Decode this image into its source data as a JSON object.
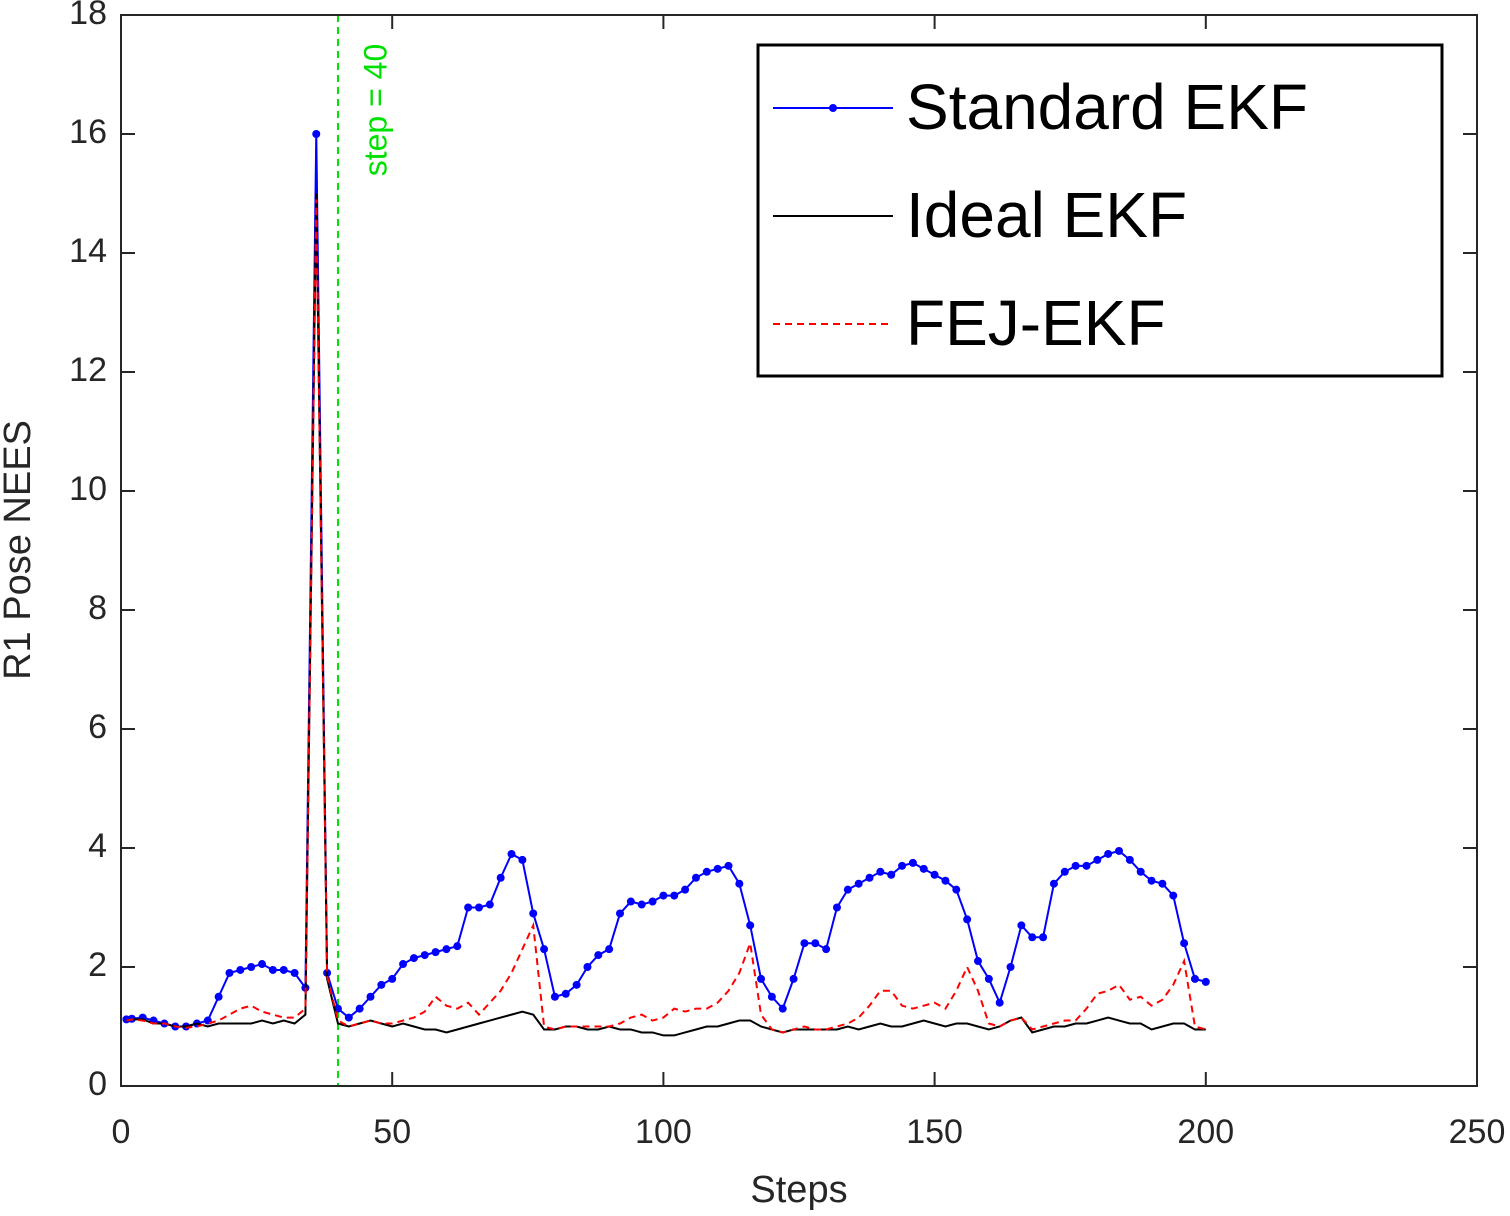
{
  "chart_data": {
    "type": "line",
    "xlabel": "Steps",
    "ylabel": "R1 Pose NEES",
    "x": [
      1,
      2,
      4,
      6,
      8,
      10,
      12,
      14,
      16,
      18,
      20,
      22,
      24,
      26,
      28,
      30,
      32,
      34,
      36,
      38,
      40,
      42,
      44,
      46,
      48,
      50,
      52,
      54,
      56,
      58,
      60,
      62,
      64,
      66,
      68,
      70,
      72,
      74,
      76,
      78,
      80,
      82,
      84,
      86,
      88,
      90,
      92,
      94,
      96,
      98,
      100,
      102,
      104,
      106,
      108,
      110,
      112,
      114,
      116,
      118,
      120,
      122,
      124,
      126,
      128,
      130,
      132,
      134,
      136,
      138,
      140,
      142,
      144,
      146,
      148,
      150,
      152,
      154,
      156,
      158,
      160,
      162,
      164,
      166,
      168,
      170,
      172,
      174,
      176,
      178,
      180,
      182,
      184,
      186,
      188,
      190,
      192,
      194,
      196,
      198,
      200
    ],
    "series": [
      {
        "name": "Standard EKF",
        "color": "#0000ff",
        "marker": true,
        "dash": false,
        "values": [
          1.12,
          1.13,
          1.15,
          1.1,
          1.05,
          1.0,
          1.0,
          1.05,
          1.1,
          1.5,
          1.9,
          1.95,
          2.0,
          2.05,
          1.95,
          1.95,
          1.9,
          1.65,
          16.0,
          1.9,
          1.3,
          1.15,
          1.3,
          1.5,
          1.7,
          1.8,
          2.05,
          2.15,
          2.2,
          2.25,
          2.3,
          2.35,
          3.0,
          3.0,
          3.05,
          3.5,
          3.9,
          3.8,
          2.9,
          2.3,
          1.5,
          1.55,
          1.7,
          2.0,
          2.2,
          2.3,
          2.9,
          3.1,
          3.05,
          3.1,
          3.2,
          3.2,
          3.3,
          3.5,
          3.6,
          3.65,
          3.7,
          3.4,
          2.7,
          1.8,
          1.5,
          1.3,
          1.8,
          2.4,
          2.4,
          2.3,
          3.0,
          3.3,
          3.4,
          3.5,
          3.6,
          3.55,
          3.7,
          3.75,
          3.65,
          3.55,
          3.45,
          3.3,
          2.8,
          2.1,
          1.8,
          1.4,
          2.0,
          2.7,
          2.5,
          2.5,
          3.4,
          3.6,
          3.7,
          3.7,
          3.8,
          3.9,
          3.95,
          3.8,
          3.6,
          3.45,
          3.4,
          3.2,
          2.4,
          1.8,
          1.75
        ]
      },
      {
        "name": "Ideal EKF",
        "color": "#000000",
        "marker": false,
        "dash": false,
        "values": [
          1.1,
          1.12,
          1.12,
          1.05,
          1.05,
          1.0,
          1.0,
          1.05,
          1.0,
          1.05,
          1.05,
          1.05,
          1.05,
          1.1,
          1.05,
          1.1,
          1.05,
          1.2,
          15.0,
          1.8,
          1.05,
          1.0,
          1.05,
          1.1,
          1.05,
          1.0,
          1.05,
          1.0,
          0.95,
          0.95,
          0.9,
          0.95,
          1.0,
          1.05,
          1.1,
          1.15,
          1.2,
          1.25,
          1.2,
          0.95,
          0.95,
          1.0,
          1.0,
          0.95,
          0.95,
          1.0,
          0.95,
          0.95,
          0.9,
          0.9,
          0.85,
          0.85,
          0.9,
          0.95,
          1.0,
          1.0,
          1.05,
          1.1,
          1.1,
          1.0,
          0.95,
          0.9,
          0.95,
          0.95,
          0.95,
          0.95,
          0.95,
          1.0,
          0.95,
          1.0,
          1.05,
          1.0,
          1.0,
          1.05,
          1.1,
          1.05,
          1.0,
          1.05,
          1.05,
          1.0,
          0.95,
          1.0,
          1.1,
          1.15,
          0.9,
          0.95,
          1.0,
          1.0,
          1.05,
          1.05,
          1.1,
          1.15,
          1.1,
          1.05,
          1.05,
          0.95,
          1.0,
          1.05,
          1.05,
          0.95,
          0.95
        ]
      },
      {
        "name": "FEJ-EKF",
        "color": "#ff0000",
        "marker": false,
        "dash": true,
        "values": [
          1.1,
          1.12,
          1.1,
          1.05,
          1.05,
          1.0,
          0.98,
          1.0,
          1.05,
          1.1,
          1.2,
          1.3,
          1.35,
          1.25,
          1.2,
          1.15,
          1.15,
          1.3,
          14.9,
          1.85,
          1.1,
          1.0,
          1.05,
          1.1,
          1.05,
          1.05,
          1.1,
          1.15,
          1.25,
          1.5,
          1.35,
          1.3,
          1.4,
          1.2,
          1.4,
          1.6,
          1.9,
          2.3,
          2.7,
          1.0,
          0.95,
          1.0,
          1.0,
          1.0,
          1.0,
          1.0,
          1.05,
          1.15,
          1.2,
          1.1,
          1.15,
          1.3,
          1.25,
          1.3,
          1.3,
          1.4,
          1.6,
          1.9,
          2.4,
          1.2,
          0.95,
          0.9,
          0.95,
          1.0,
          0.95,
          0.95,
          1.0,
          1.05,
          1.15,
          1.35,
          1.6,
          1.6,
          1.35,
          1.3,
          1.35,
          1.4,
          1.3,
          1.6,
          2.0,
          1.6,
          1.05,
          1.0,
          1.1,
          1.15,
          0.95,
          1.0,
          1.05,
          1.1,
          1.1,
          1.3,
          1.55,
          1.6,
          1.7,
          1.45,
          1.5,
          1.35,
          1.45,
          1.7,
          2.1,
          1.0,
          0.95
        ]
      }
    ],
    "vline": {
      "x": 40,
      "label": "step = 40",
      "color": "#00e000"
    },
    "xlim": [
      0,
      250
    ],
    "xticks": [
      0,
      50,
      100,
      150,
      200,
      250
    ],
    "ylim": [
      0,
      18
    ],
    "yticks": [
      0,
      2,
      4,
      6,
      8,
      10,
      12,
      14,
      16,
      18
    ],
    "grid": false,
    "legend": "upper right"
  }
}
